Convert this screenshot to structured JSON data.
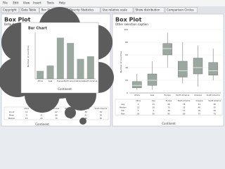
{
  "menu": [
    "File",
    "Edit",
    "View",
    "Insert",
    "Tools",
    "Help"
  ],
  "tabs": [
    "Copyright",
    "Data Table",
    "Box Plot Dialog",
    "Descrip Statistics",
    "Use relative scale",
    "Show distribution",
    "Comparison Circles"
  ],
  "left_panel": {
    "title": "Box Plot",
    "subtitle": "Default caption/title",
    "bar_chart": {
      "type": "bar",
      "title": "Bar Chart",
      "x_label": "Continent",
      "y_label": "Number of countries",
      "categories": [
        "Africa",
        "Asia",
        "Europe",
        "North America",
        "Oceania",
        "South America"
      ],
      "values": [
        12,
        20,
        62,
        54,
        30,
        34
      ],
      "color": "#9aa8a0",
      "ylim": [
        0,
        70
      ]
    },
    "table": {
      "header": [
        "Africa",
        "Asia",
        "Europe",
        "North America",
        "Oceania",
        "South America"
      ],
      "rows": [
        [
          "Count",
          "12",
          "20",
          "62",
          "54",
          "30",
          "34"
        ],
        [
          "Mean",
          "9",
          "21",
          "68",
          "36",
          "41",
          "36"
        ],
        [
          "Median",
          "12",
          "20",
          "70",
          "35",
          "40",
          "35"
        ]
      ]
    },
    "x_label": "Continent"
  },
  "right_panel": {
    "title": "Box Plot",
    "subtitle": "Other selection caption",
    "box_plot": {
      "type": "box",
      "y_label": "Number of countries",
      "x_label": "Continent",
      "categories": [
        "Africa",
        "Asia",
        "Europe",
        "North America",
        "Oceania",
        "South America"
      ],
      "boxes": [
        {
          "min": 5,
          "q1": 8,
          "median": 12,
          "q3": 18,
          "max": 30
        },
        {
          "min": 5,
          "q1": 12,
          "median": 20,
          "q3": 30,
          "max": 50
        },
        {
          "min": 40,
          "q1": 60,
          "median": 70,
          "q3": 78,
          "max": 95
        },
        {
          "min": 15,
          "q1": 25,
          "median": 35,
          "q3": 50,
          "max": 80
        },
        {
          "min": 10,
          "q1": 30,
          "median": 40,
          "q3": 55,
          "max": 75
        },
        {
          "min": 20,
          "q1": 28,
          "median": 35,
          "q3": 48,
          "max": 70
        }
      ],
      "color": "#9aa8a0",
      "ylim": [
        0,
        100
      ],
      "yticks": [
        0,
        20,
        40,
        60,
        80,
        100
      ]
    },
    "table": {
      "header": [
        "Africa",
        "Asia",
        "Europe",
        "North America",
        "Oceania",
        "South America"
      ],
      "rows": [
        [
          "Avg",
          "9",
          "21",
          "68",
          "36",
          "41",
          "36"
        ],
        [
          "Median",
          "12",
          "20",
          "70",
          "35",
          "40",
          "35"
        ],
        [
          "Min",
          "5",
          "5",
          "40",
          "15",
          "10",
          "20"
        ],
        [
          "Max",
          "30",
          "50",
          "95",
          "80",
          "75",
          "70"
        ]
      ]
    }
  }
}
